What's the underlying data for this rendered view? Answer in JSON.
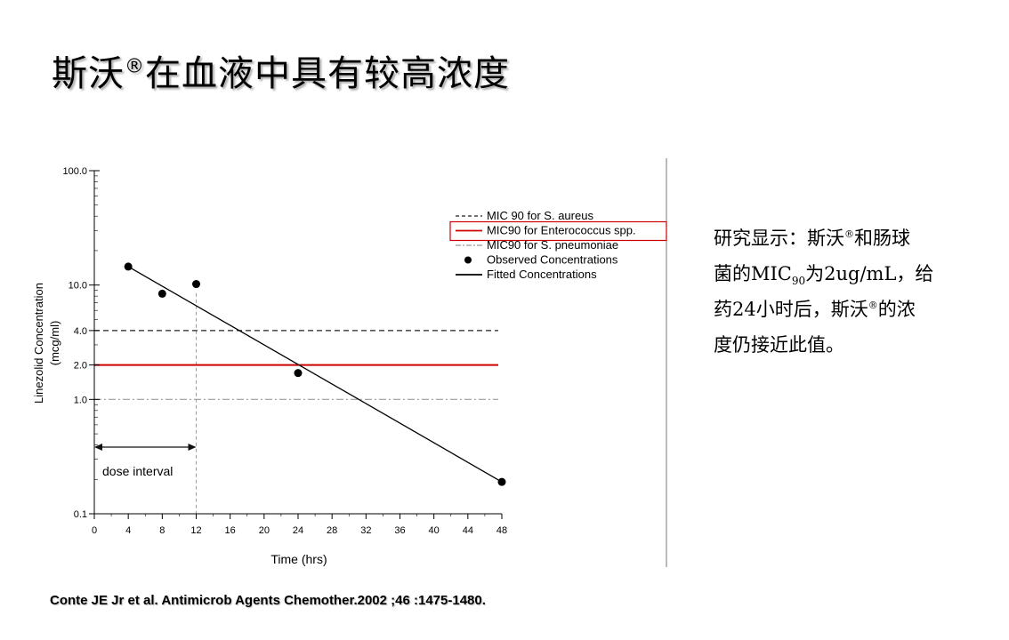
{
  "title": {
    "main": "斯沃",
    "reg": "®",
    "rest": "在血液中具有较高浓度"
  },
  "side_text": {
    "l1_a": "研究显示：斯沃",
    "l1_reg": "®",
    "l1_b": "和肠球",
    "l2_a": "菌的MIC",
    "l2_sub": "90",
    "l2_b": "为2ug/mL，给",
    "l3": "药24小时后，斯沃",
    "l3_reg": "®",
    "l3_b": "的浓",
    "l4": "度仍接近此值。"
  },
  "citation": "Conte JE Jr et al. Antimicrob Agents Chemother.2002 ;46 :1475-1480.",
  "chart_data": {
    "type": "scatter",
    "xlabel": "Time (hrs)",
    "ylabel_line1": "Linezolid Concentration",
    "ylabel_line2": "(mcg/ml)",
    "yscale": "log",
    "xlim": [
      0,
      48
    ],
    "ylim": [
      0.1,
      100.0
    ],
    "x_ticks": [
      "0",
      "4",
      "8",
      "12",
      "16",
      "20",
      "24",
      "28",
      "32",
      "36",
      "40",
      "44",
      "48"
    ],
    "y_ticks": [
      {
        "value": 100.0,
        "label": "100.0"
      },
      {
        "value": 10.0,
        "label": "10.0"
      },
      {
        "value": 4.0,
        "label": "4.0"
      },
      {
        "value": 2.0,
        "label": "2.0"
      },
      {
        "value": 1.0,
        "label": "1.0"
      },
      {
        "value": 0.1,
        "label": "0.1"
      }
    ],
    "series": [
      {
        "name": "Observed Concentrations",
        "kind": "points",
        "x": [
          4,
          8,
          12,
          24,
          48
        ],
        "y": [
          14.5,
          8.4,
          10.2,
          1.7,
          0.19
        ]
      },
      {
        "name": "Fitted Concentrations",
        "kind": "line",
        "x": [
          4,
          48
        ],
        "y": [
          14.5,
          0.19
        ]
      }
    ],
    "reference_lines": [
      {
        "name": "MIC 90 for S. aureus",
        "y": 4.0,
        "style": "dashed",
        "color": "#222222"
      },
      {
        "name": "MIC90 for Enterococcus spp.",
        "y": 2.0,
        "style": "solid",
        "color": "#cc0000",
        "highlighted": true
      },
      {
        "name": "MIC90 for S. pneumoniae",
        "y": 1.0,
        "style": "dashdot",
        "color": "#9a9a9a"
      }
    ],
    "dose_interval": {
      "label": "dose interval",
      "x_start": 0,
      "x_end": 12
    },
    "legend_position": "top-right",
    "accent_color": "#cc0000"
  }
}
